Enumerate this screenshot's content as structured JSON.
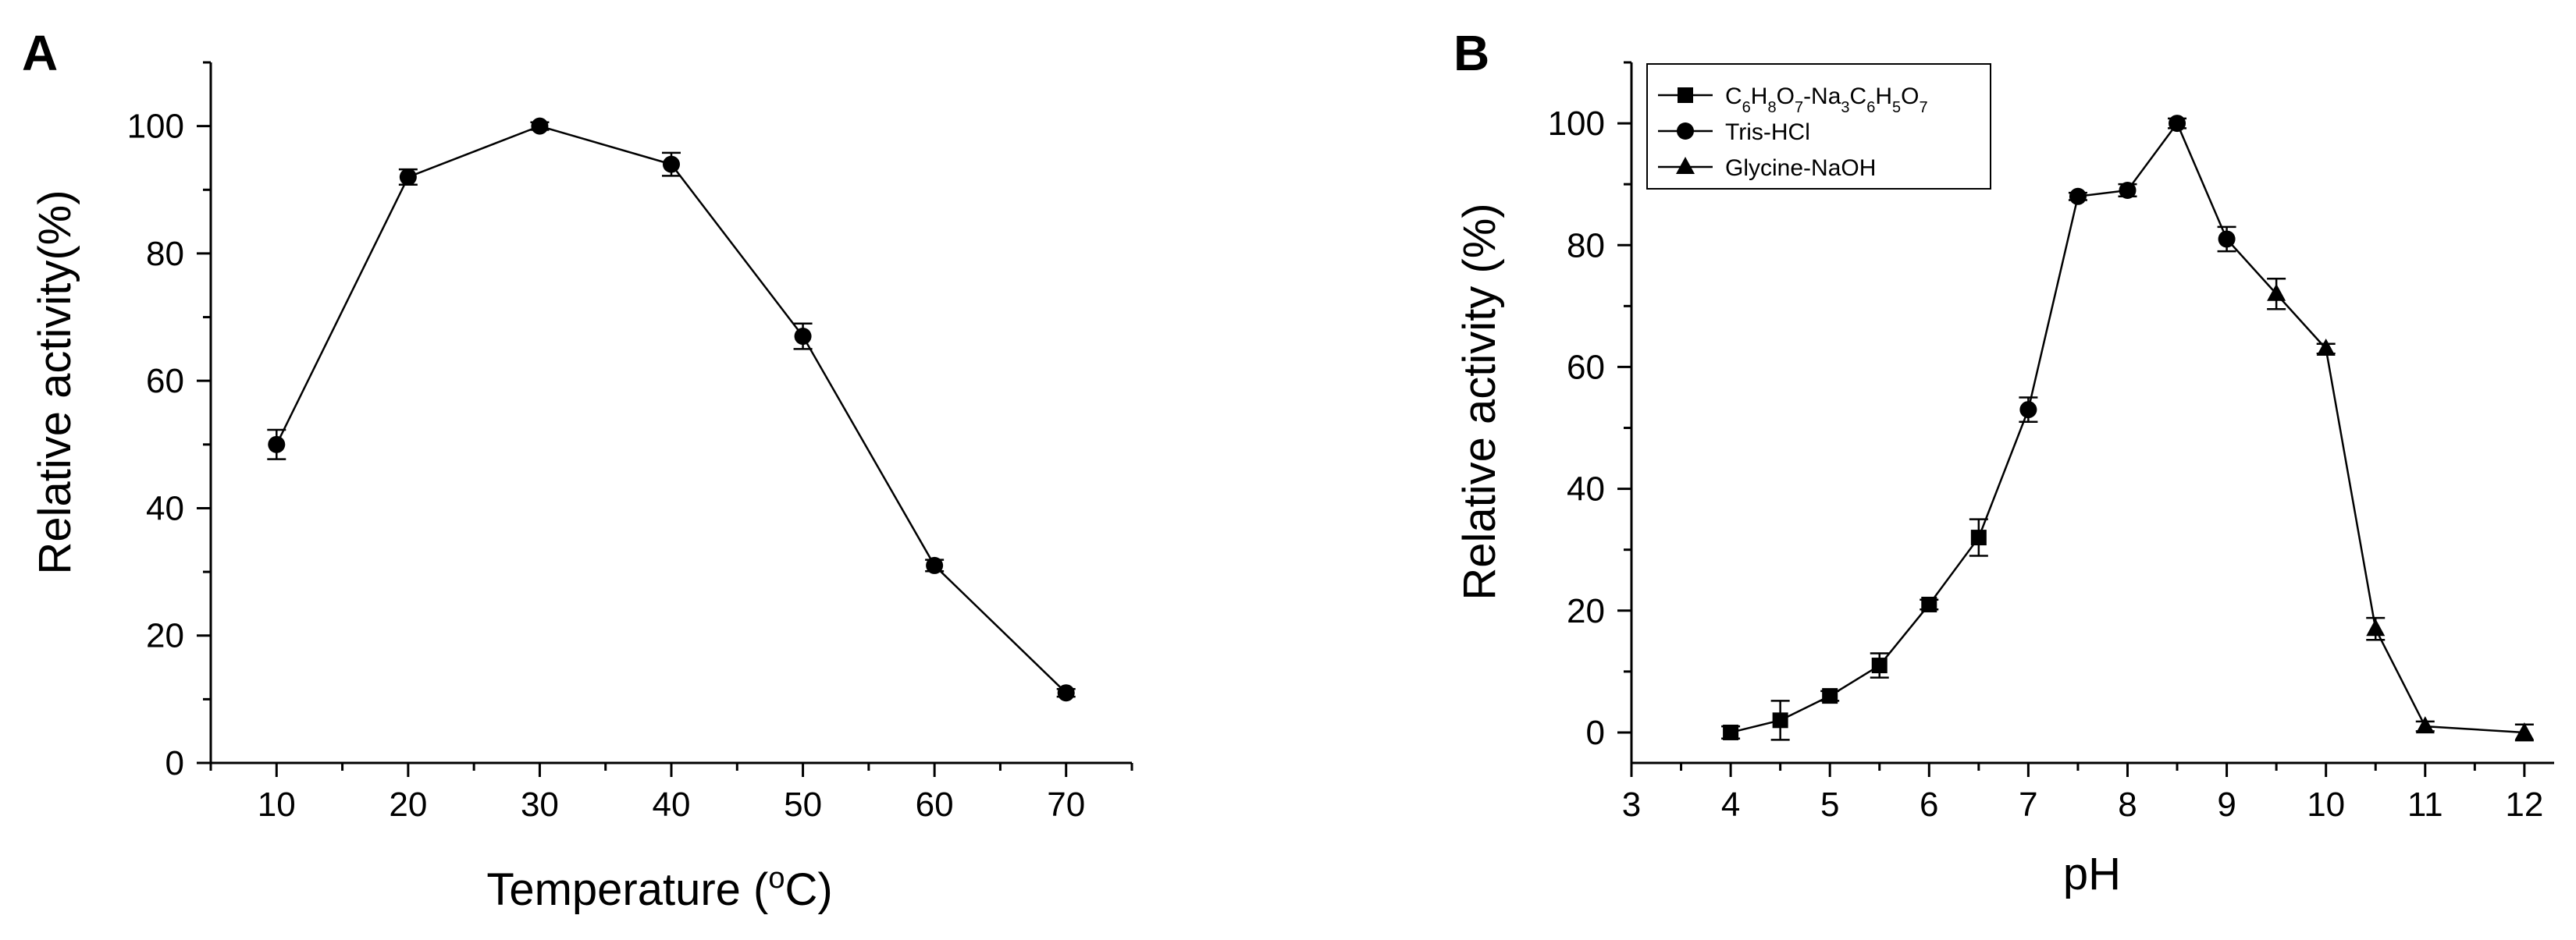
{
  "chart_data": [
    {
      "type": "line",
      "panel_label": "A",
      "xlabel": "Temperature (",
      "xlabel_sup": "o",
      "xlabel_unit": "C)",
      "ylabel": "Relative activity(%)",
      "xlim": [
        5,
        75
      ],
      "ylim": [
        0,
        110
      ],
      "xticks": [
        10,
        20,
        30,
        40,
        50,
        60,
        70
      ],
      "yticks": [
        0,
        20,
        40,
        60,
        80,
        100
      ],
      "series": [
        {
          "name": "Temperature",
          "marker": "circle",
          "x": [
            10,
            20,
            30,
            40,
            50,
            60,
            70
          ],
          "values": [
            50,
            92,
            100,
            94,
            67,
            31,
            11
          ],
          "errors": [
            2.3,
            1.2,
            0.6,
            1.8,
            2.0,
            0.9,
            0.6
          ]
        }
      ]
    },
    {
      "type": "line",
      "panel_label": "B",
      "xlabel": "pH",
      "ylabel": "Relative activity (%)",
      "xlim": [
        3,
        12.3
      ],
      "ylim": [
        -5,
        110
      ],
      "xticks": [
        3,
        4,
        5,
        6,
        7,
        8,
        9,
        10,
        11,
        12
      ],
      "yticks": [
        0,
        20,
        40,
        60,
        80,
        100
      ],
      "legend_position": "top-left",
      "series": [
        {
          "name": "C6H8O7-Na3C6H5O7",
          "legend_parts": [
            {
              "t": "C",
              "sub": false
            },
            {
              "t": "6",
              "sub": true
            },
            {
              "t": "H",
              "sub": false
            },
            {
              "t": "8",
              "sub": true
            },
            {
              "t": "O",
              "sub": false
            },
            {
              "t": "7",
              "sub": true
            },
            {
              "t": "-Na",
              "sub": false
            },
            {
              "t": "3",
              "sub": true
            },
            {
              "t": "C",
              "sub": false
            },
            {
              "t": "6",
              "sub": true
            },
            {
              "t": "H",
              "sub": false
            },
            {
              "t": "5",
              "sub": true
            },
            {
              "t": "O",
              "sub": false
            },
            {
              "t": "7",
              "sub": true
            }
          ],
          "marker": "square",
          "x": [
            4,
            4.5,
            5,
            5.5,
            6,
            6.5
          ],
          "values": [
            0,
            2,
            6,
            11,
            21,
            32
          ],
          "errors": [
            1.0,
            3.2,
            0.8,
            2.0,
            0.8,
            3.0
          ]
        },
        {
          "name": "Tris-HCl",
          "marker": "circle",
          "x": [
            7,
            7.5,
            8,
            8.5,
            9
          ],
          "values": [
            53,
            88,
            89,
            100,
            81
          ],
          "errors": [
            2.0,
            0.6,
            1.0,
            0.8,
            2.0
          ]
        },
        {
          "name": "Glycine-NaOH",
          "marker": "triangle",
          "x": [
            9.5,
            10,
            10.5,
            11,
            12
          ],
          "values": [
            72,
            63,
            17,
            1,
            0
          ],
          "errors": [
            2.5,
            0.8,
            1.8,
            0.8,
            1.3
          ]
        }
      ]
    }
  ]
}
